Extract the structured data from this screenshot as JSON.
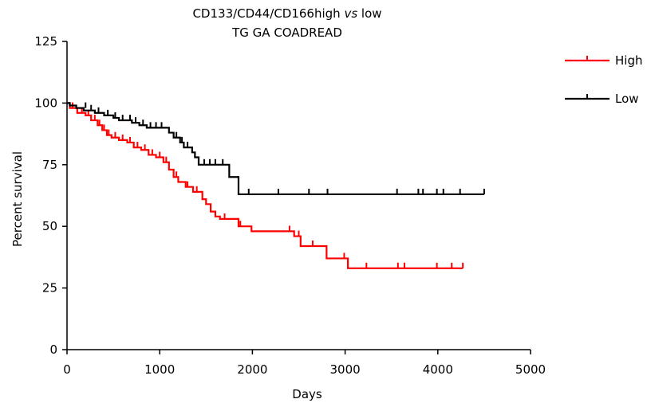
{
  "chart_data": {
    "type": "line",
    "subtype": "kaplan-meier",
    "title": {
      "prefix": "CD133/CD44/CD166high ",
      "italic": "vs",
      "suffix": " low",
      "line2": "TG GA COADREAD"
    },
    "xlabel": "Days",
    "ylabel": "Percent survival",
    "xlim": [
      0,
      5000
    ],
    "ylim": [
      0,
      125
    ],
    "xticks": [
      0,
      1000,
      2000,
      3000,
      4000,
      5000
    ],
    "yticks": [
      0,
      25,
      50,
      75,
      100,
      125
    ],
    "grid": false,
    "legend_position": "top-right",
    "series": [
      {
        "name": "High",
        "color": "#ff0000",
        "steps": [
          [
            0,
            100
          ],
          [
            30,
            98
          ],
          [
            110,
            96
          ],
          [
            200,
            95
          ],
          [
            260,
            93
          ],
          [
            330,
            91
          ],
          [
            380,
            89
          ],
          [
            430,
            87
          ],
          [
            480,
            86
          ],
          [
            560,
            85
          ],
          [
            650,
            84
          ],
          [
            720,
            82
          ],
          [
            800,
            81
          ],
          [
            880,
            79
          ],
          [
            960,
            78
          ],
          [
            1040,
            76
          ],
          [
            1100,
            73
          ],
          [
            1150,
            70
          ],
          [
            1200,
            68
          ],
          [
            1280,
            66
          ],
          [
            1360,
            64
          ],
          [
            1460,
            61
          ],
          [
            1500,
            59
          ],
          [
            1550,
            56
          ],
          [
            1600,
            54
          ],
          [
            1650,
            53
          ],
          [
            1850,
            50
          ],
          [
            1990,
            48
          ],
          [
            2450,
            46
          ],
          [
            2520,
            42
          ],
          [
            2800,
            37
          ],
          [
            3030,
            33
          ],
          [
            4270,
            33
          ]
        ],
        "censored": [
          [
            60,
            98
          ],
          [
            160,
            96
          ],
          [
            230,
            95
          ],
          [
            300,
            93
          ],
          [
            350,
            91
          ],
          [
            400,
            89
          ],
          [
            450,
            87
          ],
          [
            520,
            86
          ],
          [
            600,
            85
          ],
          [
            680,
            84
          ],
          [
            760,
            82
          ],
          [
            840,
            81
          ],
          [
            920,
            79
          ],
          [
            1000,
            78
          ],
          [
            1070,
            76
          ],
          [
            1180,
            70
          ],
          [
            1300,
            66
          ],
          [
            1400,
            64
          ],
          [
            1700,
            53
          ],
          [
            1870,
            50
          ],
          [
            2400,
            48
          ],
          [
            2500,
            46
          ],
          [
            2650,
            42
          ],
          [
            2990,
            37
          ],
          [
            3230,
            33
          ],
          [
            3570,
            33
          ],
          [
            3640,
            33
          ],
          [
            3990,
            33
          ],
          [
            4150,
            33
          ],
          [
            4270,
            33
          ]
        ]
      },
      {
        "name": "Low",
        "color": "#000000",
        "steps": [
          [
            0,
            100
          ],
          [
            30,
            99
          ],
          [
            100,
            98
          ],
          [
            180,
            97
          ],
          [
            300,
            96
          ],
          [
            400,
            95
          ],
          [
            500,
            94
          ],
          [
            560,
            93
          ],
          [
            700,
            92
          ],
          [
            780,
            91
          ],
          [
            860,
            90
          ],
          [
            1100,
            88
          ],
          [
            1150,
            86
          ],
          [
            1220,
            84
          ],
          [
            1260,
            82
          ],
          [
            1350,
            80
          ],
          [
            1380,
            78
          ],
          [
            1420,
            75
          ],
          [
            1750,
            70
          ],
          [
            1850,
            63
          ],
          [
            4500,
            63
          ]
        ],
        "censored": [
          [
            200,
            98
          ],
          [
            260,
            97
          ],
          [
            340,
            96
          ],
          [
            440,
            95
          ],
          [
            520,
            94
          ],
          [
            600,
            93
          ],
          [
            680,
            93
          ],
          [
            740,
            92
          ],
          [
            820,
            91
          ],
          [
            900,
            90
          ],
          [
            960,
            90
          ],
          [
            1020,
            90
          ],
          [
            1180,
            86
          ],
          [
            1240,
            84
          ],
          [
            1300,
            82
          ],
          [
            1480,
            75
          ],
          [
            1540,
            75
          ],
          [
            1600,
            75
          ],
          [
            1680,
            75
          ],
          [
            1960,
            63
          ],
          [
            2280,
            63
          ],
          [
            2610,
            63
          ],
          [
            2810,
            63
          ],
          [
            3560,
            63
          ],
          [
            3790,
            63
          ],
          [
            3840,
            63
          ],
          [
            3990,
            63
          ],
          [
            4060,
            63
          ],
          [
            4240,
            63
          ],
          [
            4500,
            63
          ]
        ]
      }
    ]
  }
}
